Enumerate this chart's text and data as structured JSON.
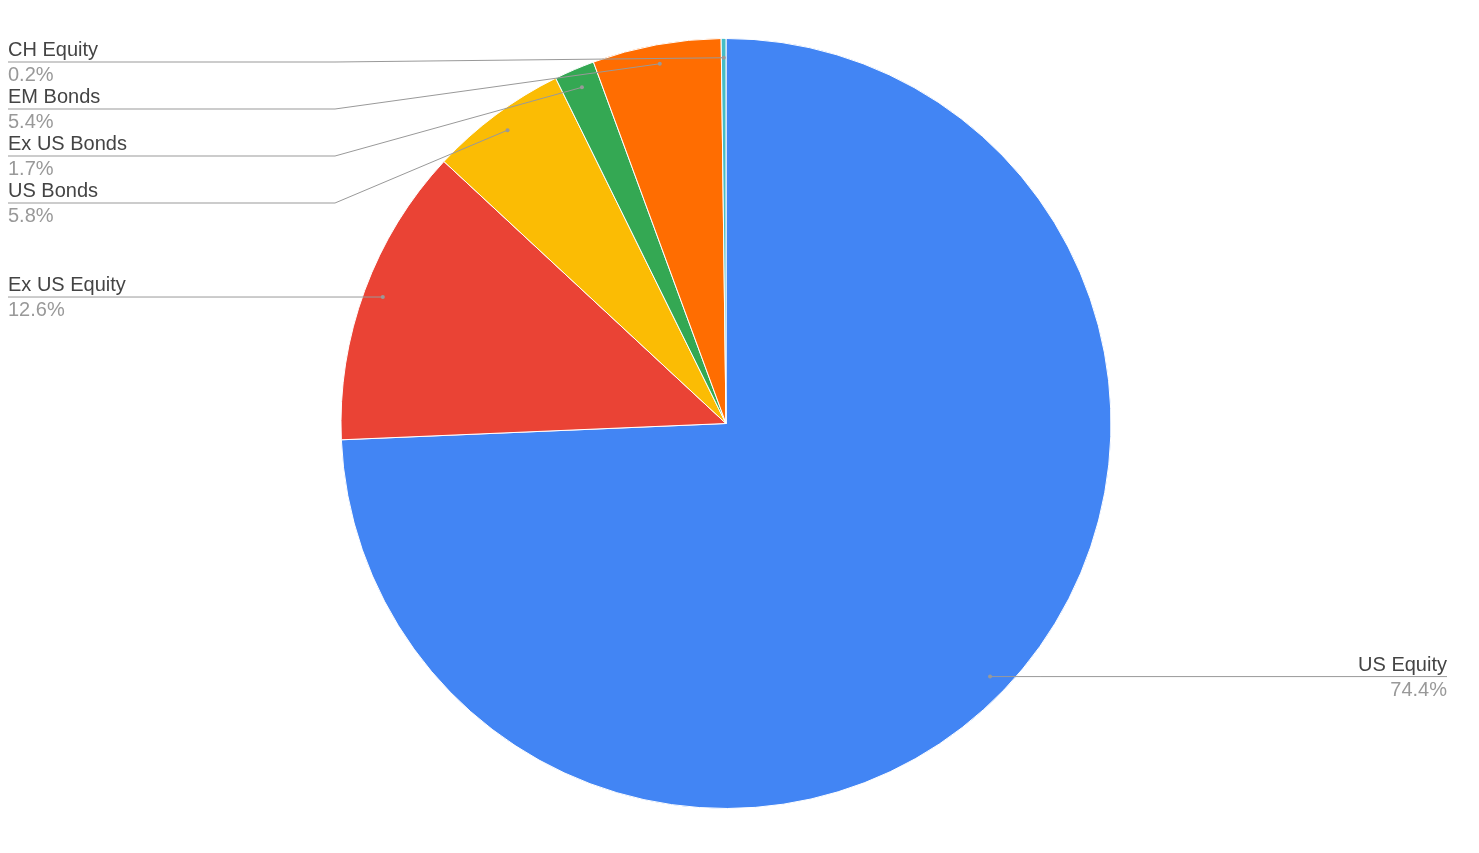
{
  "chart_data": {
    "type": "pie",
    "categories": [
      "US Equity",
      "Ex US Equity",
      "US Bonds",
      "Ex US Bonds",
      "EM Bonds",
      "CH Equity"
    ],
    "values": [
      74.4,
      12.6,
      5.8,
      1.7,
      5.4,
      0.2
    ],
    "value_labels": [
      "74.4%",
      "12.6%",
      "5.8%",
      "1.7%",
      "5.4%",
      "0.2%"
    ],
    "colors": [
      "#4285f4",
      "#ea4335",
      "#fbbc04",
      "#34a853",
      "#ff6d01",
      "#46bdc6"
    ]
  }
}
